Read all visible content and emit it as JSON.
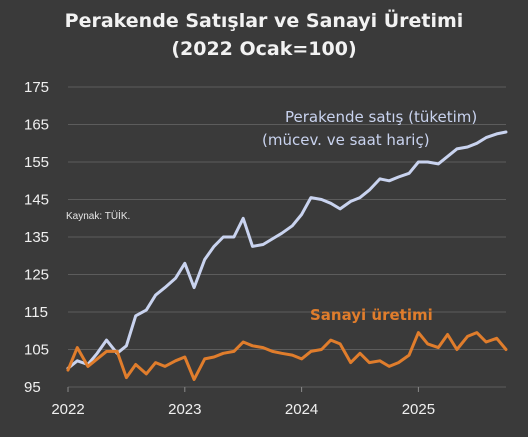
{
  "chart_data": {
    "type": "line",
    "title_line1": "Perakende Satışlar ve Sanayi Üretimi",
    "title_line2": "(2022 Ocak=100)",
    "source": "Kaynak: TÜİK.",
    "xlabel": "",
    "ylabel": "",
    "x_ticks": [
      "2022",
      "2023",
      "2024",
      "2025"
    ],
    "y_ticks": [
      95,
      105,
      115,
      125,
      135,
      145,
      155,
      165,
      175
    ],
    "ylim": [
      95,
      175
    ],
    "xlim": [
      2022.0,
      2025.75
    ],
    "grid": true,
    "series": [
      {
        "name_line1": "Perakende satış (tüketim)",
        "name_line2": "(mücev. ve saat hariç)",
        "color": "#c9d3ef",
        "points": [
          [
            2022.0,
            100.0
          ],
          [
            2022.08,
            102.0
          ],
          [
            2022.17,
            101.0
          ],
          [
            2022.25,
            104.0
          ],
          [
            2022.33,
            107.5
          ],
          [
            2022.42,
            104.0
          ],
          [
            2022.5,
            106.0
          ],
          [
            2022.58,
            114.0
          ],
          [
            2022.67,
            115.5
          ],
          [
            2022.75,
            119.5
          ],
          [
            2022.83,
            121.5
          ],
          [
            2022.92,
            124.0
          ],
          [
            2023.0,
            128.0
          ],
          [
            2023.08,
            121.5
          ],
          [
            2023.17,
            129.0
          ],
          [
            2023.25,
            132.5
          ],
          [
            2023.33,
            135.0
          ],
          [
            2023.42,
            135.0
          ],
          [
            2023.5,
            140.0
          ],
          [
            2023.58,
            132.5
          ],
          [
            2023.67,
            133.0
          ],
          [
            2023.75,
            134.5
          ],
          [
            2023.83,
            136.0
          ],
          [
            2023.92,
            138.0
          ],
          [
            2024.0,
            141.0
          ],
          [
            2024.08,
            145.5
          ],
          [
            2024.17,
            145.0
          ],
          [
            2024.25,
            144.0
          ],
          [
            2024.33,
            142.5
          ],
          [
            2024.42,
            144.5
          ],
          [
            2024.5,
            145.5
          ],
          [
            2024.58,
            147.5
          ],
          [
            2024.67,
            150.5
          ],
          [
            2024.75,
            150.0
          ],
          [
            2024.83,
            151.0
          ],
          [
            2024.92,
            152.0
          ],
          [
            2025.0,
            155.0
          ],
          [
            2025.08,
            155.0
          ],
          [
            2025.17,
            154.5
          ],
          [
            2025.25,
            156.5
          ],
          [
            2025.33,
            158.5
          ],
          [
            2025.42,
            159.0
          ],
          [
            2025.5,
            160.0
          ],
          [
            2025.58,
            161.5
          ],
          [
            2025.67,
            162.5
          ],
          [
            2025.75,
            163.0
          ]
        ]
      },
      {
        "name_line1": "Sanayi üretimi",
        "color": "#e07d2c",
        "points": [
          [
            2022.0,
            99.5
          ],
          [
            2022.08,
            105.5
          ],
          [
            2022.17,
            100.5
          ],
          [
            2022.25,
            102.5
          ],
          [
            2022.33,
            104.5
          ],
          [
            2022.42,
            104.5
          ],
          [
            2022.5,
            97.5
          ],
          [
            2022.58,
            101.0
          ],
          [
            2022.67,
            98.5
          ],
          [
            2022.75,
            101.5
          ],
          [
            2022.83,
            100.5
          ],
          [
            2022.92,
            102.0
          ],
          [
            2023.0,
            103.0
          ],
          [
            2023.08,
            97.0
          ],
          [
            2023.17,
            102.5
          ],
          [
            2023.25,
            103.0
          ],
          [
            2023.33,
            104.0
          ],
          [
            2023.42,
            104.5
          ],
          [
            2023.5,
            107.0
          ],
          [
            2023.58,
            106.0
          ],
          [
            2023.67,
            105.5
          ],
          [
            2023.75,
            104.5
          ],
          [
            2023.83,
            104.0
          ],
          [
            2023.92,
            103.5
          ],
          [
            2024.0,
            102.5
          ],
          [
            2024.08,
            104.5
          ],
          [
            2024.17,
            105.0
          ],
          [
            2024.25,
            107.5
          ],
          [
            2024.33,
            106.5
          ],
          [
            2024.42,
            101.5
          ],
          [
            2024.5,
            104.0
          ],
          [
            2024.58,
            101.5
          ],
          [
            2024.67,
            102.0
          ],
          [
            2024.75,
            100.5
          ],
          [
            2024.83,
            101.5
          ],
          [
            2024.92,
            103.5
          ],
          [
            2025.0,
            109.5
          ],
          [
            2025.08,
            106.5
          ],
          [
            2025.17,
            105.5
          ],
          [
            2025.25,
            109.0
          ],
          [
            2025.33,
            105.0
          ],
          [
            2025.42,
            108.5
          ],
          [
            2025.5,
            109.5
          ],
          [
            2025.58,
            107.0
          ],
          [
            2025.67,
            108.0
          ],
          [
            2025.75,
            105.0
          ]
        ]
      }
    ]
  }
}
